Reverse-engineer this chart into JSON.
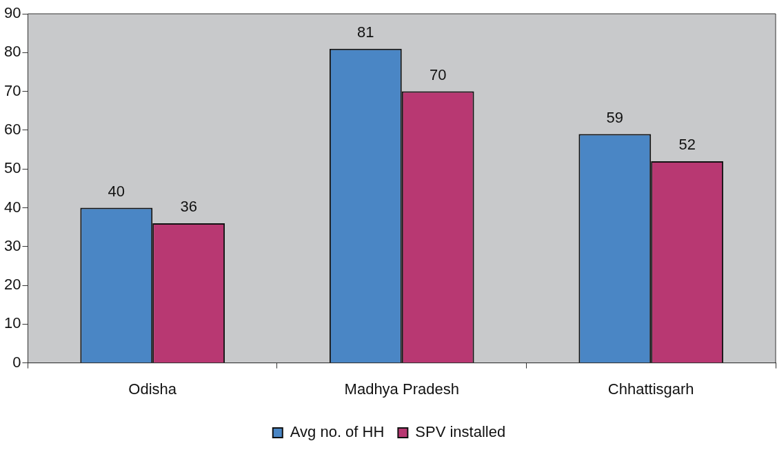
{
  "chart_data": {
    "type": "bar",
    "categories": [
      "Odisha",
      "Madhya Pradesh",
      "Chhattisgarh"
    ],
    "series": [
      {
        "name": "Avg no. of HH",
        "color": "#4a86c5",
        "values": [
          40,
          81,
          59
        ]
      },
      {
        "name": "SPV installed",
        "color": "#b83872",
        "values": [
          36,
          70,
          52
        ]
      }
    ],
    "ylim": [
      0,
      90
    ],
    "yticks": [
      0,
      10,
      20,
      30,
      40,
      50,
      60,
      70,
      80,
      90
    ],
    "grid": false,
    "legend": "bottom",
    "data_labels": true
  }
}
